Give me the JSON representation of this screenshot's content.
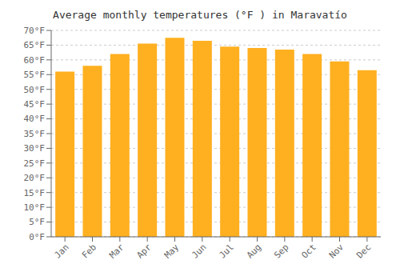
{
  "chart_data": {
    "type": "bar",
    "title": "Average monthly temperatures (°F ) in Maravatío",
    "categories": [
      "Jan",
      "Feb",
      "Mar",
      "Apr",
      "May",
      "Jun",
      "Jul",
      "Aug",
      "Sep",
      "Oct",
      "Nov",
      "Dec"
    ],
    "values": [
      56,
      58,
      62,
      65.5,
      67.5,
      66.5,
      64.5,
      64,
      63.5,
      62,
      59.5,
      56.5
    ],
    "color": "#FFB020",
    "ylim": [
      0,
      70
    ],
    "yticks": [
      {
        "value": 0,
        "label": "0°F"
      },
      {
        "value": 5,
        "label": "5°F"
      },
      {
        "value": 10,
        "label": "10°F"
      },
      {
        "value": 15,
        "label": "15°F"
      },
      {
        "value": 20,
        "label": "20°F"
      },
      {
        "value": 25,
        "label": "25°F"
      },
      {
        "value": 30,
        "label": "30°F"
      },
      {
        "value": 35,
        "label": "35°F"
      },
      {
        "value": 40,
        "label": "40°F"
      },
      {
        "value": 45,
        "label": "45°F"
      },
      {
        "value": 50,
        "label": "50°F"
      },
      {
        "value": 55,
        "label": "55°F"
      },
      {
        "value": 60,
        "label": "60°F"
      },
      {
        "value": 65,
        "label": "65°F"
      },
      {
        "value": 70,
        "label": "70°F"
      }
    ],
    "grid": true
  }
}
